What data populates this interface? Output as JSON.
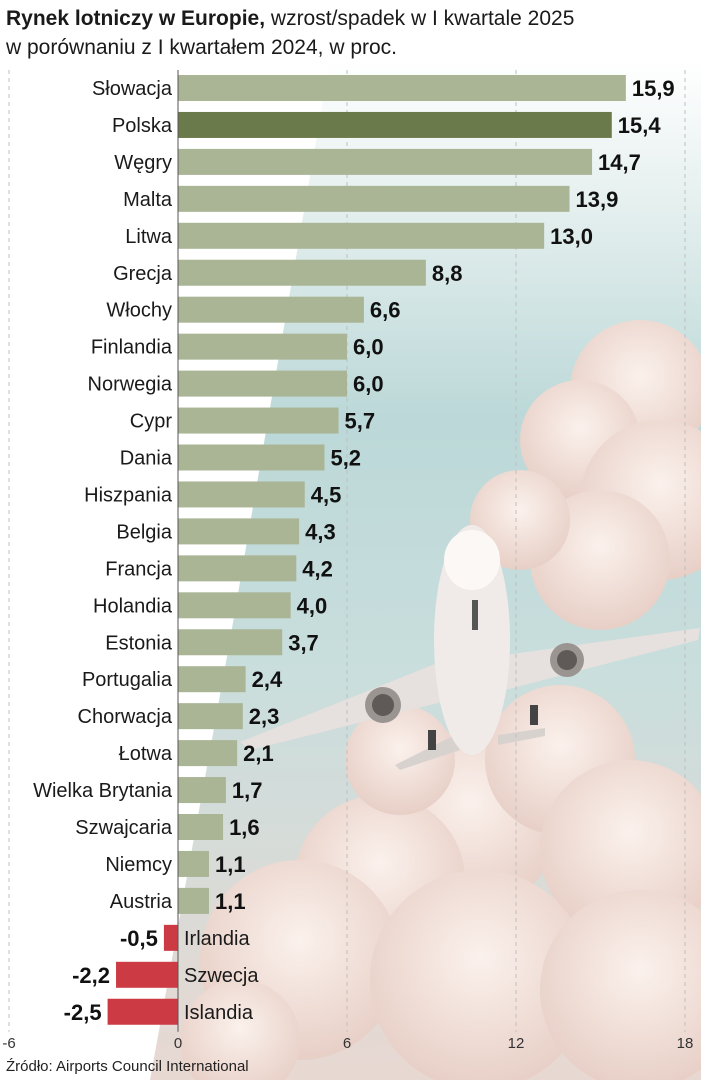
{
  "title": {
    "bold": "Rynek lotniczy w Europie,",
    "rest": " wzrost/spadek w I kwartale 2025",
    "line2": "w porównaniu z I kwartałem 2024, w proc."
  },
  "source": "Źródło: Airports Council International",
  "colors": {
    "positive": "#aab596",
    "highlight": "#6b7a4a",
    "negative": "#cc3a43",
    "sky": "#b8d6d6",
    "cloud": "#f2e0d8"
  },
  "chart_data": {
    "type": "bar",
    "orientation": "horizontal",
    "highlight": "Polska",
    "categories": [
      "Słowacja",
      "Polska",
      "Węgry",
      "Malta",
      "Litwa",
      "Grecja",
      "Włochy",
      "Finlandia",
      "Norwegia",
      "Cypr",
      "Dania",
      "Hiszpania",
      "Belgia",
      "Francja",
      "Holandia",
      "Estonia",
      "Portugalia",
      "Chorwacja",
      "Łotwa",
      "Wielka Brytania",
      "Szwajcaria",
      "Niemcy",
      "Austria",
      "Irlandia",
      "Szwecja",
      "Islandia"
    ],
    "values": [
      15.9,
      15.4,
      14.7,
      13.9,
      13.0,
      8.8,
      6.6,
      6.0,
      6.0,
      5.7,
      5.2,
      4.5,
      4.3,
      4.2,
      4.0,
      3.7,
      2.4,
      2.3,
      2.1,
      1.7,
      1.6,
      1.1,
      1.1,
      -0.5,
      -2.2,
      -2.5
    ],
    "labels": [
      "15,9",
      "15,4",
      "14,7",
      "13,9",
      "13,0",
      "8,8",
      "6,6",
      "6,0",
      "6,0",
      "5,7",
      "5,2",
      "4,5",
      "4,3",
      "4,2",
      "4,0",
      "3,7",
      "2,4",
      "2,3",
      "2,1",
      "1,7",
      "1,6",
      "1,1",
      "1,1",
      "-0,5",
      "-2,2",
      "-2,5"
    ],
    "xlim": [
      -6,
      18
    ],
    "xticks": [
      -6,
      0,
      6,
      12,
      18
    ],
    "xtick_labels": [
      "-6",
      "0",
      "6",
      "12",
      "18"
    ],
    "grid": true
  }
}
